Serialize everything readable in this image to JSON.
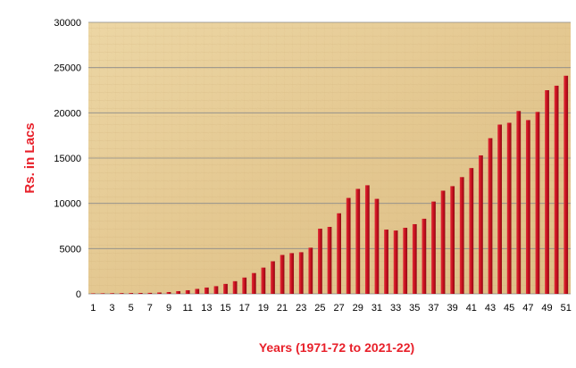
{
  "chart_data": {
    "type": "bar",
    "title": "",
    "xlabel": "Years (1971-72 to 2021-22)",
    "ylabel": "Rs. in Lacs",
    "ylim": [
      0,
      30000
    ],
    "yticks": [
      0,
      5000,
      10000,
      15000,
      20000,
      25000,
      30000
    ],
    "categories": [
      "1",
      "2",
      "3",
      "4",
      "5",
      "6",
      "7",
      "8",
      "9",
      "10",
      "11",
      "12",
      "13",
      "14",
      "15",
      "16",
      "17",
      "18",
      "19",
      "20",
      "21",
      "22",
      "23",
      "24",
      "25",
      "26",
      "27",
      "28",
      "29",
      "30",
      "31",
      "32",
      "33",
      "34",
      "35",
      "36",
      "37",
      "38",
      "39",
      "40",
      "41",
      "42",
      "43",
      "44",
      "45",
      "46",
      "47",
      "48",
      "49",
      "50",
      "51"
    ],
    "xtick_labels": [
      "1",
      "3",
      "5",
      "7",
      "9",
      "11",
      "13",
      "15",
      "17",
      "19",
      "21",
      "23",
      "25",
      "27",
      "29",
      "31",
      "33",
      "35",
      "37",
      "39",
      "41",
      "43",
      "45",
      "47",
      "49",
      "51"
    ],
    "values": [
      50,
      60,
      70,
      80,
      90,
      100,
      110,
      150,
      200,
      300,
      400,
      550,
      700,
      850,
      1100,
      1400,
      1800,
      2300,
      2900,
      3600,
      4300,
      4500,
      4600,
      5100,
      7200,
      7400,
      8900,
      10600,
      11600,
      12000,
      10500,
      7100,
      7000,
      7300,
      7700,
      8300,
      10200,
      11400,
      11900,
      12900,
      13900,
      15300,
      17200,
      18700,
      18900,
      20200,
      19200,
      20100,
      22500,
      23000,
      24100
    ],
    "grid": true,
    "bar_color": "#c8101e",
    "label_color": "#e8202a",
    "background": "parchment"
  }
}
